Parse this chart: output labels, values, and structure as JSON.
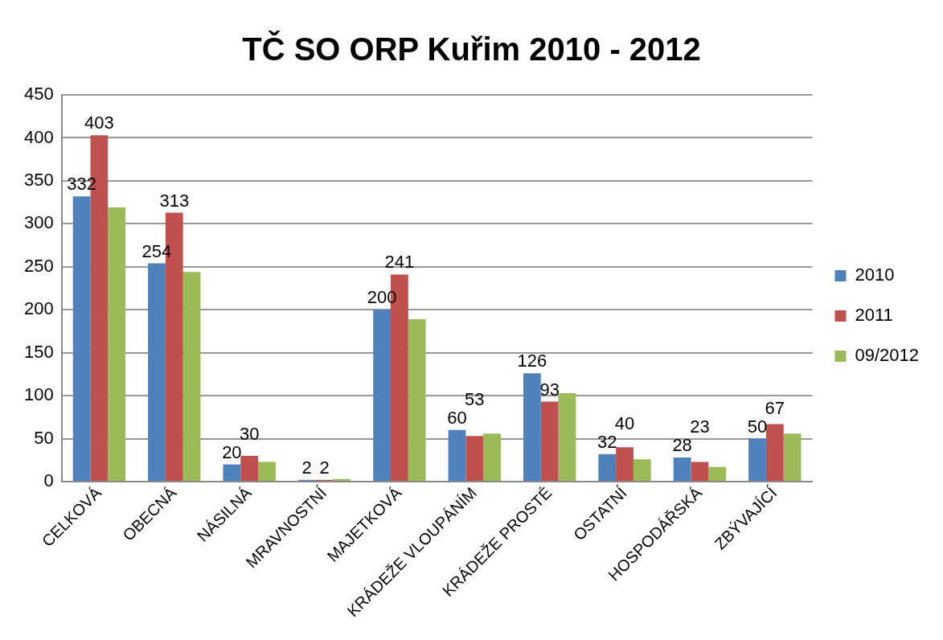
{
  "chart_data": {
    "type": "bar",
    "title": "TČ SO ORP Kuřim 2010 - 2012",
    "categories": [
      "CELKOVÁ",
      "OBECNÁ",
      "NÁSILNÁ",
      "MRAVNOSTNÍ",
      "MAJETKOVÁ",
      "KRÁDEŽE VLOUPÁNÍM",
      "KRÁDEŽE PROSTÉ",
      "OSTATNÍ",
      "HOSPODÁŘSKÁ",
      "ZBÝVAJÍCÍ"
    ],
    "series": [
      {
        "name": "2010",
        "color": "#4f81bd",
        "values": [
          332,
          254,
          20,
          2,
          200,
          60,
          126,
          32,
          28,
          50
        ],
        "value_labels": [
          "332",
          "254",
          "20",
          "2",
          "200",
          "60",
          "126",
          "32",
          "28",
          "50"
        ]
      },
      {
        "name": "2011",
        "color": "#c0504d",
        "values": [
          403,
          313,
          30,
          2,
          241,
          53,
          93,
          40,
          23,
          67
        ],
        "value_labels": [
          "403",
          "313",
          "30",
          "2",
          "241",
          "53",
          "93",
          "40",
          "23",
          "67"
        ]
      },
      {
        "name": "09/2012",
        "color": "#9bbb59",
        "values": [
          319,
          244,
          23,
          3,
          189,
          56,
          103,
          26,
          17,
          56
        ]
      }
    ],
    "ylim": [
      0,
      450
    ],
    "yticks": [
      0,
      50,
      100,
      150,
      200,
      250,
      300,
      350,
      400,
      450
    ],
    "grid": "y",
    "legend": "right"
  }
}
